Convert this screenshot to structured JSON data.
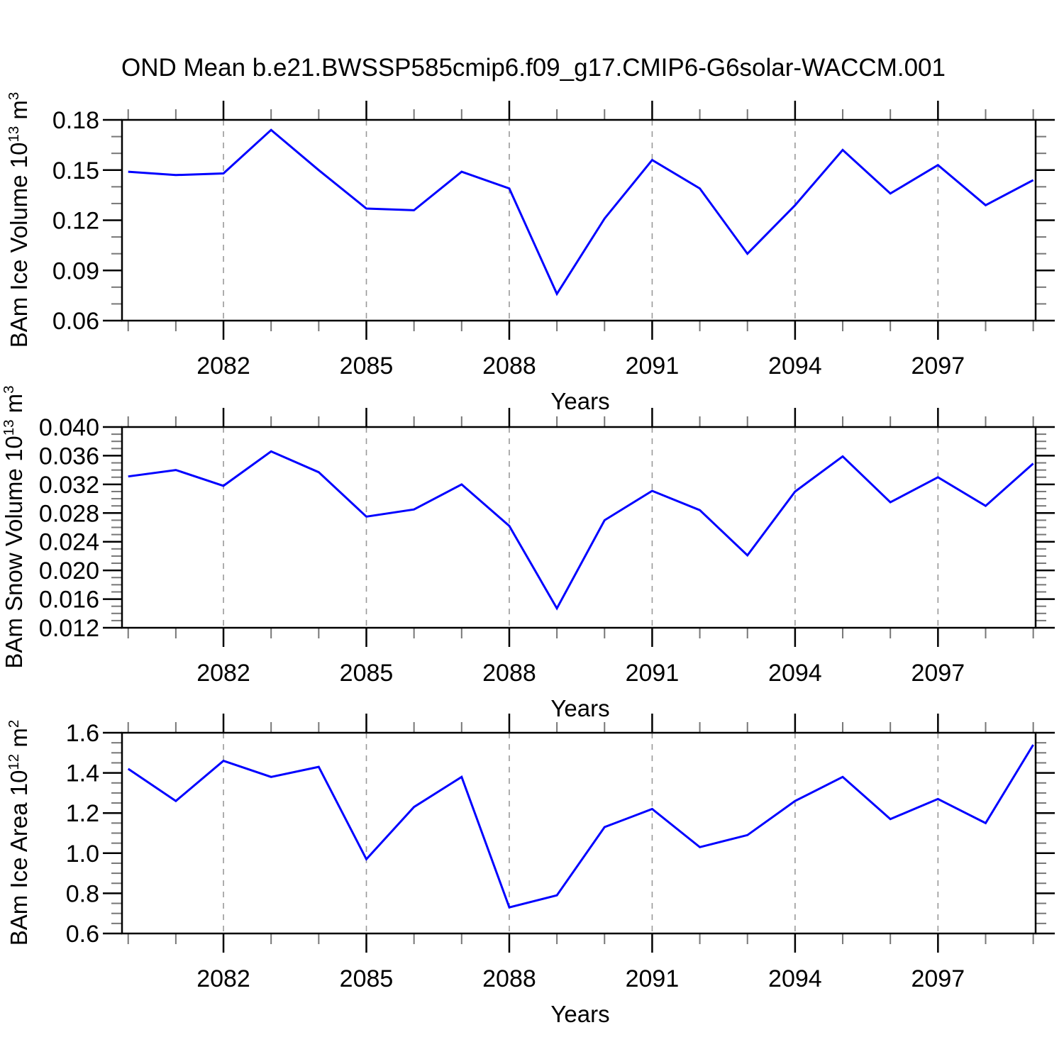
{
  "title": "OND Mean b.e21.BWSSP585cmip6.f09_g17.CMIP6-G6solar-WACCM.001",
  "x_axis_label": "Years",
  "colors": {
    "line": "#0000ff",
    "axis": "#000000",
    "grid": "#999999",
    "minor_tick": "#777777"
  },
  "chart_data": [
    {
      "type": "line",
      "id": "ice-volume",
      "ylabel": "BAm Ice Volume 10^13 m^3",
      "ylabel_parts": {
        "base": "BAm Ice Volume 10",
        "exp": "13",
        "unit": " m",
        "unit_exp": "3"
      },
      "xlabel": "Years",
      "x": [
        2080,
        2081,
        2082,
        2083,
        2084,
        2085,
        2086,
        2087,
        2088,
        2089,
        2090,
        2091,
        2092,
        2093,
        2094,
        2095,
        2096,
        2097,
        2098,
        2099
      ],
      "values": [
        0.149,
        0.147,
        0.148,
        0.174,
        0.15,
        0.127,
        0.126,
        0.149,
        0.139,
        0.076,
        0.121,
        0.156,
        0.139,
        0.1,
        0.129,
        0.162,
        0.136,
        0.153,
        0.129,
        0.144
      ],
      "ylim": [
        0.06,
        0.18
      ],
      "yticks": [
        0.06,
        0.09,
        0.12,
        0.15,
        0.18
      ],
      "ytick_labels": [
        "0.06",
        "0.09",
        "0.12",
        "0.15",
        "0.18"
      ],
      "y_minor_step": 0.01,
      "x_major_ticks": [
        2082,
        2085,
        2088,
        2091,
        2094,
        2097
      ],
      "x_tick_labels": [
        "2082",
        "2085",
        "2088",
        "2091",
        "2094",
        "2097"
      ],
      "grid": "vertical-dashed-at-major-x",
      "legend": "none"
    },
    {
      "type": "line",
      "id": "snow-volume",
      "ylabel": "BAm Snow Volume 10^13 m^3",
      "ylabel_parts": {
        "base": "BAm Snow Volume 10",
        "exp": "13",
        "unit": " m",
        "unit_exp": "3"
      },
      "xlabel": "Years",
      "x": [
        2080,
        2081,
        2082,
        2083,
        2084,
        2085,
        2086,
        2087,
        2088,
        2089,
        2090,
        2091,
        2092,
        2093,
        2094,
        2095,
        2096,
        2097,
        2098,
        2099
      ],
      "values": [
        0.0331,
        0.034,
        0.0318,
        0.0366,
        0.0337,
        0.0275,
        0.0285,
        0.032,
        0.0262,
        0.0147,
        0.027,
        0.0311,
        0.0284,
        0.0221,
        0.031,
        0.0359,
        0.0295,
        0.033,
        0.029,
        0.0349
      ],
      "ylim": [
        0.012,
        0.04
      ],
      "yticks": [
        0.012,
        0.016,
        0.02,
        0.024,
        0.028,
        0.032,
        0.036,
        0.04
      ],
      "ytick_labels": [
        "0.012",
        "0.016",
        "0.020",
        "0.024",
        "0.028",
        "0.032",
        "0.036",
        "0.040"
      ],
      "y_minor_step": 0.001,
      "x_major_ticks": [
        2082,
        2085,
        2088,
        2091,
        2094,
        2097
      ],
      "x_tick_labels": [
        "2082",
        "2085",
        "2088",
        "2091",
        "2094",
        "2097"
      ],
      "grid": "vertical-dashed-at-major-x",
      "legend": "none"
    },
    {
      "type": "line",
      "id": "ice-area",
      "ylabel": "BAm Ice Area 10^12 m^2",
      "ylabel_parts": {
        "base": "BAm Ice Area 10",
        "exp": "12",
        "unit": " m",
        "unit_exp": "2"
      },
      "xlabel": "Years",
      "x": [
        2080,
        2081,
        2082,
        2083,
        2084,
        2085,
        2086,
        2087,
        2088,
        2089,
        2090,
        2091,
        2092,
        2093,
        2094,
        2095,
        2096,
        2097,
        2098,
        2099
      ],
      "values": [
        1.42,
        1.26,
        1.46,
        1.38,
        1.43,
        0.97,
        1.23,
        1.38,
        0.73,
        0.79,
        1.13,
        1.22,
        1.03,
        1.09,
        1.26,
        1.38,
        1.17,
        1.27,
        1.15,
        1.54
      ],
      "ylim": [
        0.6,
        1.6
      ],
      "yticks": [
        0.6,
        0.8,
        1.0,
        1.2,
        1.4,
        1.6
      ],
      "ytick_labels": [
        "0.6",
        "0.8",
        "1.0",
        "1.2",
        "1.4",
        "1.6"
      ],
      "y_minor_step": 0.05,
      "x_major_ticks": [
        2082,
        2085,
        2088,
        2091,
        2094,
        2097
      ],
      "x_tick_labels": [
        "2082",
        "2085",
        "2088",
        "2091",
        "2094",
        "2097"
      ],
      "grid": "vertical-dashed-at-major-x",
      "legend": "none"
    }
  ]
}
